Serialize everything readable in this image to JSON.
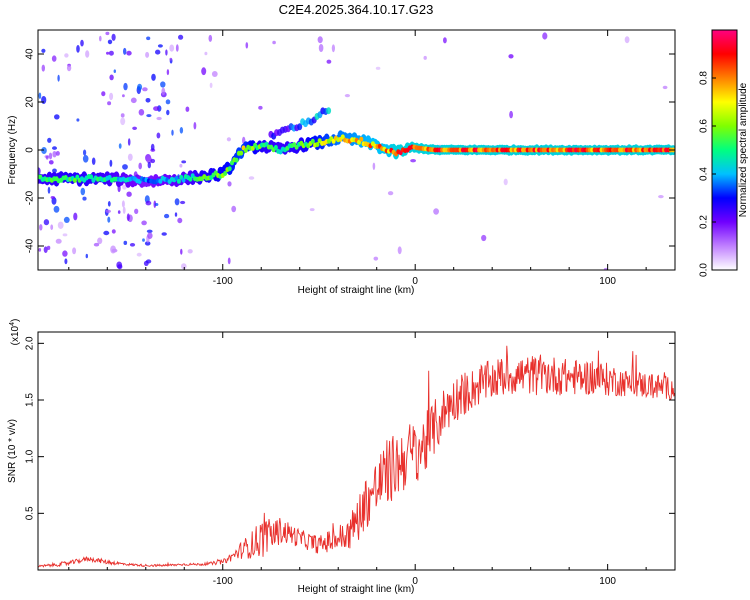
{
  "chart_data": [
    {
      "type": "heatmap",
      "title": "C2E4.2025.364.10.17.G23",
      "xlabel": "Height of straight line (km)",
      "ylabel": "Frequency (Hz)",
      "xlim": [
        -196,
        135
      ],
      "ylim": [
        -50,
        50
      ],
      "x_ticks": [
        -100,
        0,
        100
      ],
      "x_tick_labels": [
        "-100",
        "0",
        "100"
      ],
      "y_ticks": [
        -40,
        -20,
        0,
        20,
        40
      ],
      "y_tick_labels": [
        "-40",
        "-20",
        "0",
        "20",
        "40"
      ],
      "colorbar": {
        "label": "Normalized spectral amplitude",
        "range": [
          0,
          1
        ],
        "ticks": [
          0.0,
          0.2,
          0.4,
          0.6,
          0.8
        ],
        "tick_labels": [
          "0.0",
          "0.2",
          "0.4",
          "0.6",
          "0.8"
        ],
        "colors": [
          "#ffffff",
          "#c080ff",
          "#7000ff",
          "#0000ff",
          "#00c0ff",
          "#00ff80",
          "#80ff00",
          "#ffff00",
          "#ff8000",
          "#ff0000",
          "#ff0080"
        ]
      },
      "ridge": {
        "name": "dominant frequency",
        "x": [
          -196,
          -180,
          -160,
          -140,
          -120,
          -110,
          -100,
          -95,
          -90,
          -80,
          -70,
          -60,
          -50,
          -40,
          -30,
          -20,
          -15,
          -10,
          -5,
          0,
          10,
          30,
          60,
          100,
          135
        ],
        "y": [
          -12,
          -12,
          -12,
          -13,
          -12,
          -11,
          -10,
          -6,
          0,
          2,
          0,
          2,
          3,
          5,
          4,
          2,
          0,
          -1,
          0,
          1,
          0,
          0,
          0,
          0,
          0
        ],
        "amplitude": [
          0.55,
          0.6,
          0.55,
          0.4,
          0.5,
          0.6,
          0.65,
          0.7,
          0.75,
          0.6,
          0.55,
          0.6,
          0.7,
          0.8,
          0.85,
          0.9,
          0.9,
          0.95,
          0.95,
          0.95,
          0.95,
          0.95,
          0.95,
          0.95,
          0.95
        ]
      },
      "secondary_ridge": {
        "name": "upper branch",
        "x": [
          -75,
          -65,
          -55,
          -45
        ],
        "y": [
          6,
          9,
          12,
          17
        ],
        "amplitude": [
          0.3,
          0.35,
          0.4,
          0.45
        ]
      }
    },
    {
      "type": "line",
      "xlabel": "Height of straight line (km)",
      "ylabel": "SNR (10 * v/v)",
      "y_multiplier": "(x10",
      "y_multiplier_exp": "4",
      "xlim": [
        -196,
        135
      ],
      "ylim": [
        0,
        2.1
      ],
      "x_ticks": [
        -100,
        0,
        100
      ],
      "x_tick_labels": [
        "-100",
        "0",
        "100"
      ],
      "y_ticks": [
        0.5,
        1.0,
        1.5,
        2.0
      ],
      "y_tick_labels": [
        "0.5",
        "1.0",
        "1.5",
        "2.0"
      ],
      "color": "#e8302c",
      "series": [
        {
          "name": "SNR",
          "x": [
            -196,
            -180,
            -170,
            -160,
            -150,
            -140,
            -130,
            -120,
            -110,
            -100,
            -95,
            -90,
            -85,
            -80,
            -75,
            -70,
            -65,
            -60,
            -55,
            -50,
            -45,
            -40,
            -35,
            -30,
            -25,
            -20,
            -15,
            -10,
            -5,
            0,
            5,
            10,
            15,
            20,
            25,
            30,
            40,
            50,
            60,
            70,
            80,
            90,
            100,
            110,
            120,
            135
          ],
          "y": [
            0.03,
            0.06,
            0.1,
            0.07,
            0.05,
            0.04,
            0.04,
            0.05,
            0.05,
            0.07,
            0.12,
            0.18,
            0.22,
            0.28,
            0.3,
            0.35,
            0.32,
            0.28,
            0.25,
            0.22,
            0.25,
            0.28,
            0.3,
            0.45,
            0.62,
            0.72,
            0.85,
            0.92,
            1.0,
            1.05,
            1.1,
            1.25,
            1.4,
            1.5,
            1.55,
            1.6,
            1.68,
            1.72,
            1.72,
            1.72,
            1.7,
            1.7,
            1.68,
            1.65,
            1.63,
            1.6
          ],
          "noise_amplitude": [
            0.01,
            0.02,
            0.02,
            0.02,
            0.01,
            0.01,
            0.01,
            0.01,
            0.01,
            0.02,
            0.04,
            0.08,
            0.12,
            0.18,
            0.15,
            0.12,
            0.1,
            0.08,
            0.08,
            0.08,
            0.1,
            0.12,
            0.15,
            0.2,
            0.25,
            0.28,
            0.3,
            0.3,
            0.3,
            0.28,
            0.28,
            0.25,
            0.22,
            0.2,
            0.2,
            0.18,
            0.18,
            0.18,
            0.18,
            0.18,
            0.16,
            0.16,
            0.15,
            0.12,
            0.12,
            0.1
          ]
        }
      ]
    }
  ]
}
